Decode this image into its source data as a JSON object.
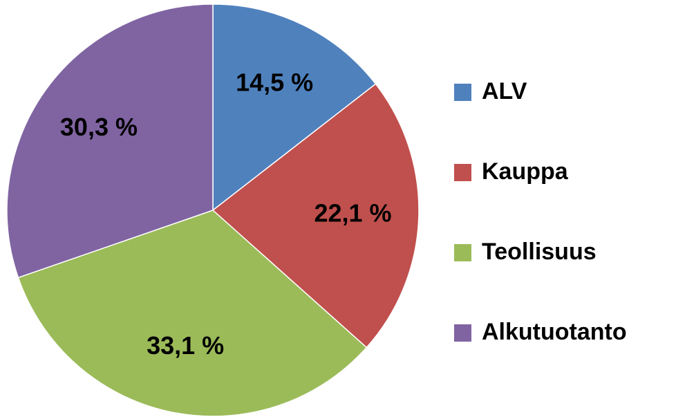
{
  "chart_data": {
    "type": "pie",
    "categories": [
      "ALV",
      "Kauppa",
      "Teollisuus",
      "Alkutuotanto"
    ],
    "values": [
      14.5,
      22.1,
      33.1,
      30.3
    ],
    "value_labels": [
      "14,5 %",
      "22,1 %",
      "33,1 %",
      "30,3 %"
    ],
    "colors": [
      "#4f81bd",
      "#c0504d",
      "#9bbb59",
      "#8064a2"
    ],
    "legend": "right"
  }
}
